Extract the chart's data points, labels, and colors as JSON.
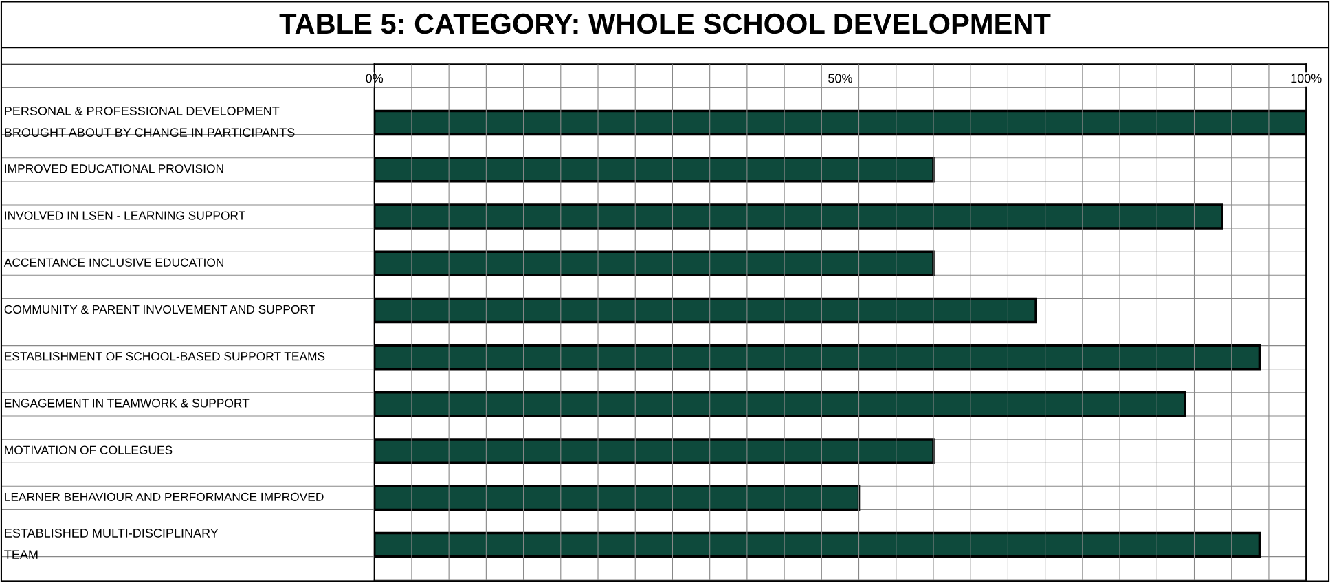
{
  "chart_data": {
    "type": "bar",
    "orientation": "horizontal",
    "title": "TABLE 5: CATEGORY: WHOLE SCHOOL DEVELOPMENT",
    "categories": [
      "PERSONAL & PROFESSIONAL DEVELOPMENT\nBROUGHT ABOUT BY CHANGE IN PARTICIPANTS",
      "IMPROVED EDUCATIONAL PROVISION",
      "INVOLVED IN LSEN - LEARNING SUPPORT",
      "ACCENTANCE INCLUSIVE EDUCATION",
      "COMMUNITY & PARENT INVOLVEMENT AND SUPPORT",
      "ESTABLISHMENT OF SCHOOL-BASED SUPPORT TEAMS",
      "ENGAGEMENT IN TEAMWORK & SUPPORT",
      "MOTIVATION OF COLLEGUES",
      "LEARNER BEHAVIOUR AND PERFORMANCE IMPROVED",
      "ESTABLISHED MULTI-DISCIPLINARY\nTEAM"
    ],
    "values": [
      100,
      60,
      91,
      60,
      71,
      95,
      87,
      60,
      52,
      95
    ],
    "color": "#0e4a3c",
    "xlim": [
      0,
      100
    ],
    "xticks": [
      {
        "value": 0,
        "label": "0%"
      },
      {
        "value": 50,
        "label": "50%"
      },
      {
        "value": 100,
        "label": "100%"
      }
    ],
    "grid": true
  }
}
